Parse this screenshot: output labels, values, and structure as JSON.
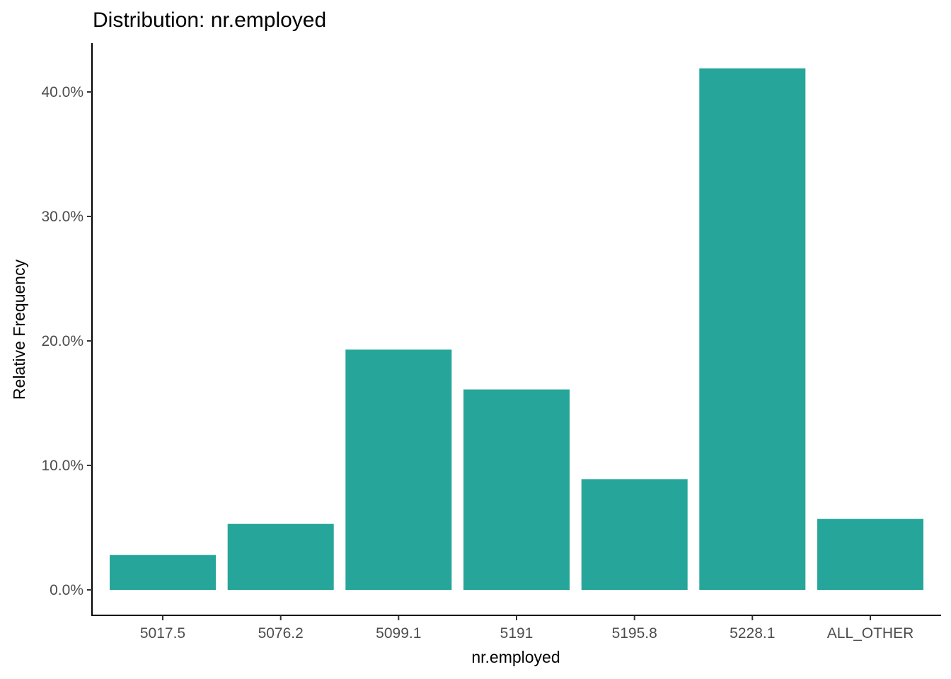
{
  "chart_data": {
    "type": "bar",
    "title": "Distribution: nr.employed",
    "xlabel": "nr.employed",
    "ylabel": "Relative Frequency",
    "categories": [
      "5017.5",
      "5076.2",
      "5099.1",
      "5191",
      "5195.8",
      "5228.1",
      "ALL_OTHER"
    ],
    "values": [
      2.8,
      5.3,
      19.3,
      16.1,
      8.9,
      41.9,
      5.7
    ],
    "ylim": [
      0,
      43.5
    ],
    "yticks": [
      0,
      10,
      20,
      30,
      40
    ],
    "ytick_labels": [
      "0.0%",
      "10.0%",
      "20.0%",
      "30.0%",
      "40.0%"
    ],
    "bar_color": "#26A69A",
    "grid": false,
    "legend": "none"
  }
}
